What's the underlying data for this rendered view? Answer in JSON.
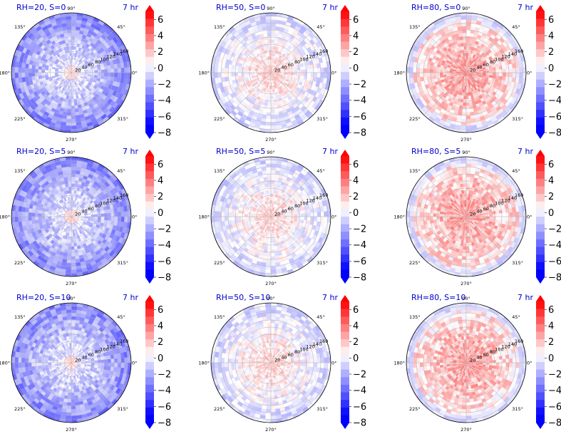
{
  "figure": {
    "angle_ticks": [
      "90°",
      "45°",
      "0°",
      "315°",
      "270°",
      "225°",
      "180°",
      "135°"
    ],
    "radial_ticks": [
      "20",
      "40",
      "60",
      "80",
      "100",
      "120",
      "140",
      "160"
    ],
    "colorbar_ticks": [
      "6",
      "4",
      "2",
      "0",
      "−2",
      "−4",
      "−6",
      "−8"
    ]
  },
  "colors": {
    "title": "#0000cc",
    "negative": "#0000ff",
    "positive": "#ff0000",
    "neutral": "#ffffff"
  },
  "chart_data": [
    {
      "type": "heatmap",
      "projection": "polar",
      "title": "RH=20, S=0",
      "annotation": "7 hr",
      "rlim": [
        0,
        160
      ],
      "clim": [
        -8,
        7
      ],
      "colormap": "bwr",
      "levels": 16,
      "field_tendency": "negative"
    },
    {
      "type": "heatmap",
      "projection": "polar",
      "title": "RH=50, S=0",
      "annotation": "7 hr",
      "rlim": [
        0,
        160
      ],
      "clim": [
        -8,
        7
      ],
      "colormap": "bwr",
      "levels": 16,
      "field_tendency": "mixed"
    },
    {
      "type": "heatmap",
      "projection": "polar",
      "title": "RH=80, S=0",
      "annotation": "7 hr",
      "rlim": [
        0,
        160
      ],
      "clim": [
        -8,
        7
      ],
      "colormap": "bwr",
      "levels": 16,
      "field_tendency": "positive"
    },
    {
      "type": "heatmap",
      "projection": "polar",
      "title": "RH=20, S=5",
      "annotation": "7 hr",
      "rlim": [
        0,
        160
      ],
      "clim": [
        -8,
        7
      ],
      "colormap": "bwr",
      "levels": 16,
      "field_tendency": "negative"
    },
    {
      "type": "heatmap",
      "projection": "polar",
      "title": "RH=50, S=5",
      "annotation": "7 hr",
      "rlim": [
        0,
        160
      ],
      "clim": [
        -8,
        7
      ],
      "colormap": "bwr",
      "levels": 16,
      "field_tendency": "mixed"
    },
    {
      "type": "heatmap",
      "projection": "polar",
      "title": "RH=80, S=5",
      "annotation": "7 hr",
      "rlim": [
        0,
        160
      ],
      "clim": [
        -8,
        7
      ],
      "colormap": "bwr",
      "levels": 16,
      "field_tendency": "positive"
    },
    {
      "type": "heatmap",
      "projection": "polar",
      "title": "RH=20, S=10",
      "annotation": "7 hr",
      "rlim": [
        0,
        160
      ],
      "clim": [
        -8,
        7
      ],
      "colormap": "bwr",
      "levels": 16,
      "field_tendency": "negative"
    },
    {
      "type": "heatmap",
      "projection": "polar",
      "title": "RH=50, S=10",
      "annotation": "7 hr",
      "rlim": [
        0,
        160
      ],
      "clim": [
        -8,
        7
      ],
      "colormap": "bwr",
      "levels": 16,
      "field_tendency": "mixed"
    },
    {
      "type": "heatmap",
      "projection": "polar",
      "title": "RH=80, S=10",
      "annotation": "7 hr",
      "rlim": [
        0,
        160
      ],
      "clim": [
        -8,
        7
      ],
      "colormap": "bwr",
      "levels": 16,
      "field_tendency": "positive"
    }
  ]
}
